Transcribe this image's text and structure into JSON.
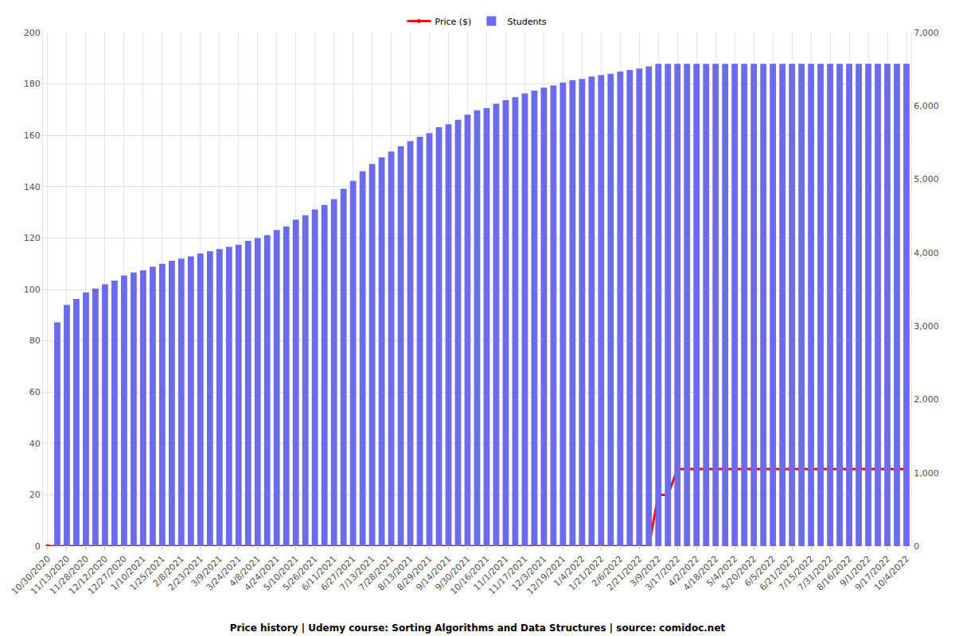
{
  "chart_data": {
    "type": "bar",
    "title": "Price history | Udemy course: Sorting Algorithms and Data Structures | source: comidoc.net",
    "categories": [
      "10/30/2020",
      null,
      "11/13/2020",
      null,
      "11/28/2020",
      null,
      "12/12/2020",
      null,
      "12/27/2020",
      null,
      "1/10/2021",
      null,
      "1/25/2021",
      null,
      "2/8/2021",
      null,
      "2/23/2021",
      null,
      "3/9/2021",
      null,
      "3/24/2021",
      null,
      "4/8/2021",
      null,
      "4/24/2021",
      null,
      "5/10/2021",
      null,
      "5/26/2021",
      null,
      "6/11/2021",
      null,
      "6/27/2021",
      null,
      "7/13/2021",
      null,
      "7/28/2021",
      null,
      "8/13/2021",
      null,
      "8/29/2021",
      null,
      "9/14/2021",
      null,
      "9/30/2021",
      null,
      "10/16/2021",
      null,
      "11/1/2021",
      null,
      "11/17/2021",
      null,
      "12/3/2021",
      null,
      "12/19/2021",
      null,
      "1/4/2022",
      null,
      "1/21/2022",
      null,
      "2/6/2022",
      null,
      "2/21/2022",
      null,
      "3/9/2022",
      null,
      "3/17/2022",
      null,
      "4/2/2022",
      null,
      "4/18/2022",
      null,
      "5/4/2022",
      null,
      "5/20/2022",
      null,
      "6/5/2022",
      null,
      "6/21/2022",
      null,
      "7/15/2022",
      null,
      "7/31/2022",
      null,
      "8/16/2022",
      null,
      "9/1/2022",
      null,
      "9/17/2022",
      null,
      "10/4/2022"
    ],
    "series": [
      {
        "name": "Price ($)",
        "type": "line",
        "color": "#ff0000",
        "marker": "circle",
        "line_style": "solid",
        "values": [
          0,
          0,
          0,
          0,
          0,
          0,
          0,
          0,
          0,
          0,
          0,
          0,
          0,
          0,
          0,
          0,
          0,
          0,
          0,
          0,
          0,
          0,
          0,
          0,
          0,
          0,
          0,
          0,
          0,
          0,
          0,
          0,
          0,
          0,
          0,
          0,
          0,
          0,
          0,
          0,
          0,
          0,
          0,
          0,
          0,
          0,
          0,
          0,
          0,
          0,
          0,
          0,
          0,
          0,
          0,
          0,
          0,
          0,
          0,
          0,
          0,
          0,
          0,
          0,
          20,
          20,
          30,
          30,
          30,
          30,
          30,
          30,
          30,
          30,
          30,
          30,
          30,
          30,
          30,
          30,
          30,
          30,
          30,
          30,
          30,
          30,
          30,
          30,
          30,
          30,
          30
        ]
      },
      {
        "name": "Students",
        "type": "bar",
        "axis": "y2",
        "color": "#6b6bec",
        "values": [
          null,
          3050,
          3290,
          3370,
          3460,
          3510,
          3570,
          3620,
          3690,
          3730,
          3760,
          3810,
          3850,
          3890,
          3920,
          3950,
          3990,
          4020,
          4050,
          4080,
          4110,
          4160,
          4200,
          4240,
          4310,
          4360,
          4450,
          4510,
          4590,
          4650,
          4730,
          4870,
          4980,
          5110,
          5210,
          5300,
          5380,
          5450,
          5520,
          5580,
          5630,
          5710,
          5750,
          5810,
          5880,
          5940,
          5970,
          6030,
          6080,
          6120,
          6170,
          6210,
          6250,
          6280,
          6320,
          6350,
          6370,
          6400,
          6420,
          6440,
          6470,
          6490,
          6510,
          6540,
          6575,
          6575,
          6575,
          6575,
          6575,
          6575,
          6575,
          6575,
          6575,
          6575,
          6575,
          6575,
          6575,
          6575,
          6575,
          6575,
          6575,
          6575,
          6575,
          6575,
          6575,
          6575,
          6575,
          6575,
          6575,
          6575,
          6575
        ]
      }
    ],
    "ylim": [
      0,
      200
    ],
    "yticks": [
      0,
      20,
      40,
      60,
      80,
      100,
      120,
      140,
      160,
      180,
      200
    ],
    "y2lim": [
      0,
      7000
    ],
    "y2ticks": [
      0,
      {
        "value": 1000,
        "label": "1,000"
      },
      {
        "value": 2000,
        "label": "2,000"
      },
      {
        "value": 3000,
        "label": "3,000"
      },
      {
        "value": 4000,
        "label": "4,000"
      },
      {
        "value": 5000,
        "label": "5,000"
      },
      {
        "value": 6000,
        "label": "6,000"
      },
      {
        "value": 7000,
        "label": "7,000"
      }
    ],
    "grid": true,
    "legend": "top"
  }
}
